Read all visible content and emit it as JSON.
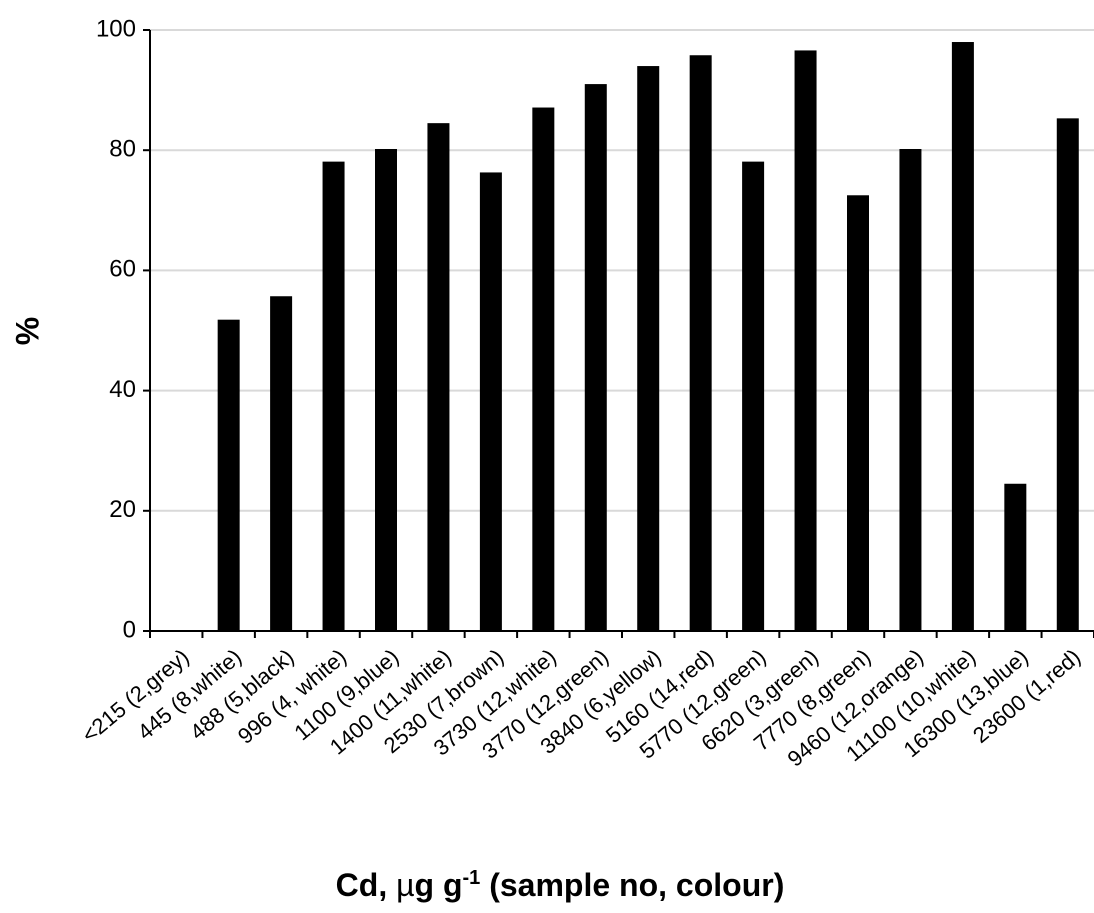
{
  "chart_data": {
    "type": "bar",
    "title": "",
    "xlabel": "Cd, µg g-1 (sample no, colour)",
    "xlabel_parts": {
      "prefix": "Cd, ",
      "mu": "µ",
      "unit": "g g",
      "superscript": "-1",
      "suffix": " (sample no, colour)"
    },
    "ylabel": "%",
    "ylim": [
      0,
      100
    ],
    "yticks": [
      "0",
      "20",
      "40",
      "60",
      "80",
      "100"
    ],
    "grid": true,
    "legend": "none",
    "categories": [
      "<215 (2,grey)",
      "445 (8,white)",
      "488 (5,black)",
      "996 (4, white)",
      "1100 (9,blue)",
      "1400 (11,white)",
      "2530 (7,brown)",
      "3730 (12,white)",
      "3770 (12,green)",
      "3840 (6,yellow)",
      "5160 (14,red)",
      "5770 (12,green)",
      "6620 (3,green)",
      "7770 (8,green)",
      "9460 (12,orange)",
      "11100 (10,white)",
      "16300 (13,blue)",
      "23600 (1,red)"
    ],
    "values": [
      0,
      51.8,
      55.7,
      78.1,
      80.2,
      84.5,
      76.3,
      87.1,
      91,
      94,
      95.8,
      78.1,
      96.6,
      72.5,
      80.2,
      98,
      24.5,
      85.3
    ],
    "colors": {
      "bar": "#000000",
      "grid": "#d9d9d9",
      "axis": "#000000",
      "background": "#ffffff"
    }
  }
}
